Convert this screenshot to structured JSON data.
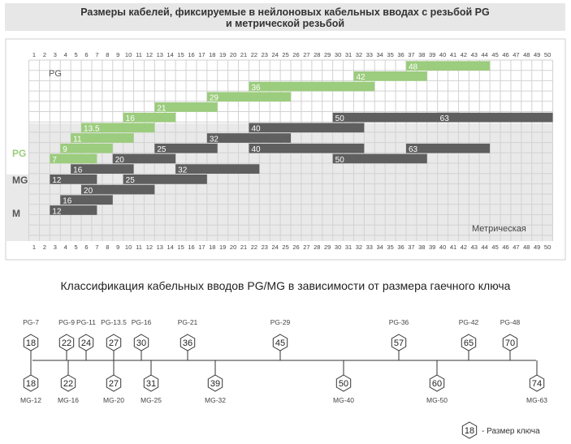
{
  "header": {
    "title_line1": "Размеры кабелей, фиксируемые в нейлоновых кабельных вводах с резьбой PG",
    "title_line2": "и метрической резьбой"
  },
  "chart_data": {
    "type": "range-bars",
    "x_ticks": [
      1,
      2,
      3,
      4,
      5,
      6,
      7,
      8,
      9,
      10,
      11,
      12,
      13,
      14,
      15,
      16,
      17,
      18,
      19,
      20,
      21,
      22,
      23,
      24,
      25,
      26,
      27,
      28,
      29,
      30,
      31,
      32,
      33,
      34,
      35,
      36,
      37,
      38,
      39,
      40,
      41,
      42,
      43,
      44,
      45,
      46,
      47,
      48,
      49,
      50
    ],
    "xlim": [
      1,
      50
    ],
    "labels": {
      "pg_small": "PG",
      "pg": "PG",
      "mg": "MG",
      "m": "M",
      "metric": "Метрическая"
    },
    "colors": {
      "pg": "#9ccc7e",
      "metric": "#5f5f5f",
      "grid": "#d2d2d2",
      "shade": "#e9e9e9"
    },
    "pg": [
      {
        "name": "7",
        "min": 3,
        "max": 6.5
      },
      {
        "name": "9",
        "min": 4,
        "max": 8
      },
      {
        "name": "11",
        "min": 5,
        "max": 10
      },
      {
        "name": "13.5",
        "min": 6,
        "max": 12
      },
      {
        "name": "16",
        "min": 10,
        "max": 14
      },
      {
        "name": "21",
        "min": 13,
        "max": 18
      },
      {
        "name": "29",
        "min": 18,
        "max": 25
      },
      {
        "name": "36",
        "min": 22,
        "max": 33
      },
      {
        "name": "42",
        "min": 32,
        "max": 38
      },
      {
        "name": "48",
        "min": 37,
        "max": 44
      }
    ],
    "mg": [
      {
        "name": "12",
        "min": 3,
        "max": 6.5
      },
      {
        "name": "16",
        "min": 5,
        "max": 10
      },
      {
        "name": "20",
        "min": 9,
        "max": 14
      },
      {
        "name": "25",
        "min": 13,
        "max": 18
      },
      {
        "name": "32",
        "min": 18,
        "max": 25
      },
      {
        "name": "40",
        "min": 22,
        "max": 32
      },
      {
        "name": "50",
        "min": 30,
        "max": 38
      },
      {
        "name": "63",
        "min": 37,
        "max": 44
      }
    ],
    "metric": [
      {
        "name": "12",
        "min": 3,
        "max": 6.5
      },
      {
        "name": "16",
        "min": 4,
        "max": 8
      },
      {
        "name": "20",
        "min": 6,
        "max": 12
      },
      {
        "name": "25",
        "min": 10,
        "max": 17
      },
      {
        "name": "32",
        "min": 15,
        "max": 22
      },
      {
        "name": "40",
        "min": 22,
        "max": 32
      },
      {
        "name": "50",
        "min": 30,
        "max": 41
      },
      {
        "name": "63",
        "min": 40,
        "max": 50
      }
    ]
  },
  "section2": {
    "title": "Классификация кабельных вводов PG/MG в зависимости от размера гаечного ключа",
    "pg": [
      {
        "label": "PG-7",
        "size": "18"
      },
      {
        "label": "PG-9",
        "size": "22"
      },
      {
        "label": "PG-11",
        "size": "24"
      },
      {
        "label": "PG-13.5",
        "size": "27"
      },
      {
        "label": "PG-16",
        "size": "30"
      },
      {
        "label": "PG-21",
        "size": "36"
      },
      {
        "label": "PG-29",
        "size": "45"
      },
      {
        "label": "PG-36",
        "size": "57"
      },
      {
        "label": "PG-42",
        "size": "65"
      },
      {
        "label": "PG-48",
        "size": "70"
      }
    ],
    "mg": [
      {
        "label": "MG-12",
        "size": "18"
      },
      {
        "label": "MG-16",
        "size": "22"
      },
      {
        "label": "MG-20",
        "size": "27"
      },
      {
        "label": "MG-25",
        "size": "31"
      },
      {
        "label": "MG-32",
        "size": "39"
      },
      {
        "label": "MG-40",
        "size": "50"
      },
      {
        "label": "MG-50",
        "size": "60"
      },
      {
        "label": "MG-63",
        "size": "74"
      }
    ],
    "legend": {
      "size": "18",
      "text": "- Размер ключа"
    }
  }
}
